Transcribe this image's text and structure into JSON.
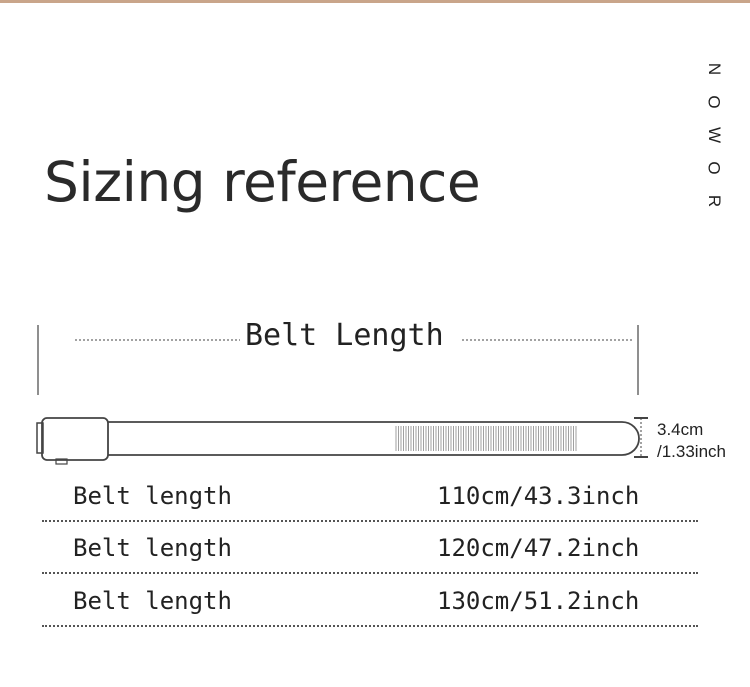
{
  "title": "Sizing reference",
  "brand": [
    "N",
    "O",
    "W",
    "O",
    "R"
  ],
  "diagram": {
    "length_label": "Belt Length",
    "width_cm": "3.4cm",
    "width_inch": "/1.33inch"
  },
  "rows": [
    {
      "label": "Belt length",
      "value": "110cm/43.3inch"
    },
    {
      "label": "Belt length",
      "value": "120cm/47.2inch"
    },
    {
      "label": "Belt length",
      "value": "130cm/51.2inch"
    }
  ]
}
